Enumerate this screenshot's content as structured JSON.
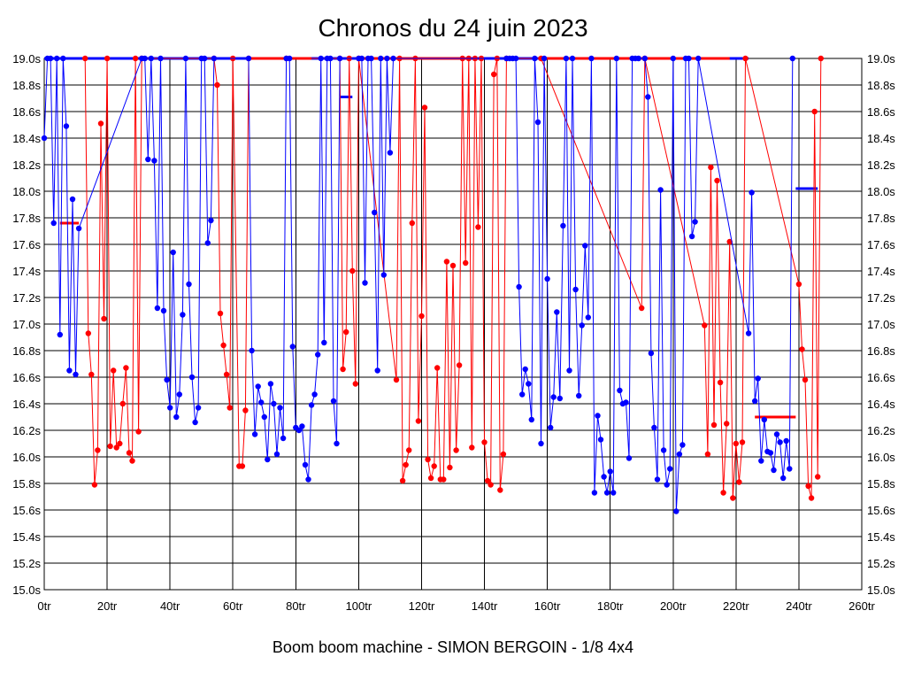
{
  "chart_data": {
    "type": "line",
    "title": "Chronos du 24 juin 2023",
    "caption": "Boom boom machine - SIMON BERGOIN - 1/8 4x4",
    "xlabel": "",
    "ylabel": "",
    "xlim": [
      0,
      260
    ],
    "ylim": [
      15.0,
      19.0
    ],
    "grid": true,
    "x_ticks": [
      0,
      20,
      40,
      60,
      80,
      100,
      120,
      140,
      160,
      180,
      200,
      220,
      240,
      260
    ],
    "x_tick_labels": [
      "0tr",
      "20tr",
      "40tr",
      "60tr",
      "80tr",
      "100tr",
      "120tr",
      "140tr",
      "160tr",
      "180tr",
      "200tr",
      "220tr",
      "240tr",
      "260tr"
    ],
    "y_ticks": [
      15.0,
      15.2,
      15.4,
      15.6,
      15.8,
      16.0,
      16.2,
      16.4,
      16.6,
      16.8,
      17.0,
      17.2,
      17.4,
      17.6,
      17.8,
      18.0,
      18.2,
      18.4,
      18.6,
      18.8,
      19.0
    ],
    "y_tick_labels": [
      "15.0s",
      "15.2s",
      "15.4s",
      "15.6s",
      "15.8s",
      "16.0s",
      "16.2s",
      "16.4s",
      "16.6s",
      "16.8s",
      "17.0s",
      "17.2s",
      "17.4s",
      "17.6s",
      "17.8s",
      "18.0s",
      "18.2s",
      "18.4s",
      "18.6s",
      "18.8s",
      "19.0s"
    ],
    "series": [
      {
        "name": "red",
        "color": "#ff0000",
        "points": [
          [
            13,
            19.0
          ],
          [
            14,
            16.93
          ],
          [
            15,
            16.62
          ],
          [
            16,
            15.79
          ],
          [
            17,
            16.05
          ],
          [
            18,
            18.51
          ],
          [
            19,
            17.04
          ],
          [
            20,
            19.0
          ],
          [
            21,
            16.08
          ],
          [
            22,
            16.65
          ],
          [
            23,
            16.07
          ],
          [
            24,
            16.1
          ],
          [
            25,
            16.4
          ],
          [
            26,
            16.67
          ],
          [
            27,
            16.03
          ],
          [
            28,
            15.97
          ],
          [
            29,
            19.0
          ],
          [
            30,
            16.19
          ],
          [
            31,
            19.0
          ],
          [
            54,
            19.0
          ],
          [
            55,
            18.8
          ],
          [
            56,
            17.08
          ],
          [
            57,
            16.84
          ],
          [
            58,
            16.62
          ],
          [
            59,
            16.37
          ],
          [
            60,
            19.0
          ],
          [
            62,
            15.93
          ],
          [
            63,
            15.93
          ],
          [
            64,
            16.35
          ],
          [
            65,
            19.0
          ],
          [
            77,
            19.0
          ],
          [
            94,
            19.0
          ],
          [
            95,
            16.66
          ],
          [
            96,
            16.94
          ],
          [
            97,
            19.0
          ],
          [
            98,
            17.4
          ],
          [
            99,
            16.55
          ],
          [
            100,
            19.0
          ],
          [
            112,
            16.58
          ],
          [
            113,
            19.0
          ],
          [
            114,
            15.82
          ],
          [
            115,
            15.94
          ],
          [
            116,
            16.05
          ],
          [
            117,
            17.76
          ],
          [
            118,
            19.0
          ],
          [
            119,
            16.27
          ],
          [
            120,
            17.06
          ],
          [
            121,
            18.63
          ],
          [
            122,
            15.98
          ],
          [
            123,
            15.84
          ],
          [
            124,
            15.93
          ],
          [
            125,
            16.67
          ],
          [
            126,
            15.83
          ],
          [
            127,
            15.83
          ],
          [
            128,
            17.47
          ],
          [
            129,
            15.92
          ],
          [
            130,
            17.44
          ],
          [
            131,
            16.05
          ],
          [
            132,
            16.69
          ],
          [
            133,
            19.0
          ],
          [
            134,
            17.46
          ],
          [
            135,
            19.0
          ],
          [
            136,
            16.07
          ],
          [
            137,
            19.0
          ],
          [
            138,
            17.73
          ],
          [
            139,
            19.0
          ],
          [
            140,
            16.11
          ],
          [
            141,
            15.82
          ],
          [
            142,
            15.79
          ],
          [
            143,
            18.88
          ],
          [
            144,
            19.0
          ],
          [
            145,
            15.75
          ],
          [
            146,
            16.02
          ],
          [
            147,
            19.0
          ],
          [
            158,
            19.0
          ],
          [
            190,
            17.12
          ],
          [
            191,
            19.0
          ],
          [
            210,
            16.99
          ],
          [
            211,
            16.02
          ],
          [
            212,
            18.18
          ],
          [
            213,
            16.24
          ],
          [
            214,
            18.08
          ],
          [
            215,
            16.56
          ],
          [
            216,
            15.73
          ],
          [
            217,
            16.25
          ],
          [
            218,
            17.62
          ],
          [
            219,
            15.69
          ],
          [
            220,
            16.1
          ],
          [
            221,
            15.81
          ],
          [
            222,
            16.11
          ],
          [
            223,
            19.0
          ],
          [
            240,
            17.3
          ],
          [
            241,
            16.81
          ],
          [
            242,
            16.58
          ],
          [
            243,
            15.78
          ],
          [
            244,
            15.69
          ],
          [
            245,
            18.6
          ],
          [
            246,
            15.85
          ],
          [
            247,
            19.0
          ]
        ]
      },
      {
        "name": "blue",
        "color": "#0000ff",
        "points": [
          [
            0,
            18.4
          ],
          [
            1,
            19.0
          ],
          [
            2,
            19.0
          ],
          [
            3,
            17.76
          ],
          [
            4,
            19.0
          ],
          [
            5,
            16.92
          ],
          [
            6,
            19.0
          ],
          [
            7,
            18.49
          ],
          [
            8,
            16.65
          ],
          [
            9,
            17.94
          ],
          [
            10,
            16.62
          ],
          [
            11,
            17.72
          ],
          [
            31,
            19.0
          ],
          [
            32,
            19.0
          ],
          [
            33,
            18.24
          ],
          [
            34,
            19.0
          ],
          [
            35,
            18.23
          ],
          [
            36,
            17.12
          ],
          [
            37,
            19.0
          ],
          [
            38,
            17.1
          ],
          [
            39,
            16.58
          ],
          [
            40,
            16.37
          ],
          [
            41,
            17.54
          ],
          [
            42,
            16.3
          ],
          [
            43,
            16.47
          ],
          [
            44,
            17.07
          ],
          [
            45,
            19.0
          ],
          [
            46,
            17.3
          ],
          [
            47,
            16.6
          ],
          [
            48,
            16.26
          ],
          [
            49,
            16.37
          ],
          [
            50,
            19.0
          ],
          [
            51,
            19.0
          ],
          [
            52,
            17.61
          ],
          [
            53,
            17.78
          ],
          [
            54,
            19.0
          ],
          [
            65,
            19.0
          ],
          [
            66,
            16.8
          ],
          [
            67,
            16.17
          ],
          [
            68,
            16.53
          ],
          [
            69,
            16.41
          ],
          [
            70,
            16.3
          ],
          [
            71,
            15.98
          ],
          [
            72,
            16.55
          ],
          [
            73,
            16.4
          ],
          [
            74,
            16.02
          ],
          [
            75,
            16.37
          ],
          [
            76,
            16.14
          ],
          [
            77,
            19.0
          ],
          [
            78,
            19.0
          ],
          [
            79,
            16.83
          ],
          [
            80,
            16.22
          ],
          [
            81,
            16.2
          ],
          [
            82,
            16.23
          ],
          [
            83,
            15.94
          ],
          [
            84,
            15.83
          ],
          [
            85,
            16.39
          ],
          [
            86,
            16.47
          ],
          [
            87,
            16.77
          ],
          [
            88,
            19.0
          ],
          [
            89,
            16.86
          ],
          [
            90,
            19.0
          ],
          [
            91,
            19.0
          ],
          [
            92,
            16.42
          ],
          [
            93,
            16.1
          ],
          [
            94,
            19.0
          ],
          [
            100,
            19.0
          ],
          [
            101,
            19.0
          ],
          [
            102,
            17.31
          ],
          [
            103,
            19.0
          ],
          [
            104,
            19.0
          ],
          [
            105,
            17.84
          ],
          [
            106,
            16.65
          ],
          [
            107,
            19.0
          ],
          [
            108,
            17.37
          ],
          [
            109,
            19.0
          ],
          [
            110,
            18.29
          ],
          [
            111,
            19.0
          ],
          [
            147,
            19.0
          ],
          [
            148,
            19.0
          ],
          [
            149,
            19.0
          ],
          [
            150,
            19.0
          ],
          [
            151,
            17.28
          ],
          [
            152,
            16.47
          ],
          [
            153,
            16.66
          ],
          [
            154,
            16.55
          ],
          [
            155,
            16.28
          ],
          [
            156,
            19.0
          ],
          [
            157,
            18.52
          ],
          [
            158,
            16.1
          ],
          [
            159,
            19.0
          ],
          [
            160,
            17.34
          ],
          [
            161,
            16.22
          ],
          [
            162,
            16.45
          ],
          [
            163,
            17.09
          ],
          [
            164,
            16.44
          ],
          [
            165,
            17.74
          ],
          [
            166,
            19.0
          ],
          [
            167,
            16.65
          ],
          [
            168,
            19.0
          ],
          [
            169,
            17.26
          ],
          [
            170,
            16.46
          ],
          [
            171,
            16.99
          ],
          [
            172,
            17.59
          ],
          [
            173,
            17.05
          ],
          [
            174,
            19.0
          ],
          [
            175,
            15.73
          ],
          [
            176,
            16.31
          ],
          [
            177,
            16.13
          ],
          [
            178,
            15.85
          ],
          [
            179,
            15.73
          ],
          [
            180,
            15.89
          ],
          [
            181,
            15.73
          ],
          [
            182,
            19.0
          ],
          [
            183,
            16.5
          ],
          [
            184,
            16.4
          ],
          [
            185,
            16.41
          ],
          [
            186,
            15.99
          ],
          [
            187,
            19.0
          ],
          [
            188,
            19.0
          ],
          [
            189,
            19.0
          ],
          [
            191,
            19.0
          ],
          [
            192,
            18.71
          ],
          [
            193,
            16.78
          ],
          [
            194,
            16.22
          ],
          [
            195,
            15.83
          ],
          [
            196,
            18.01
          ],
          [
            197,
            16.05
          ],
          [
            198,
            15.79
          ],
          [
            199,
            15.91
          ],
          [
            200,
            19.0
          ],
          [
            201,
            15.59
          ],
          [
            202,
            16.02
          ],
          [
            203,
            16.09
          ],
          [
            204,
            19.0
          ],
          [
            205,
            19.0
          ],
          [
            206,
            17.66
          ],
          [
            207,
            17.77
          ],
          [
            208,
            19.0
          ],
          [
            224,
            16.93
          ],
          [
            225,
            17.99
          ],
          [
            226,
            16.42
          ],
          [
            227,
            16.59
          ],
          [
            228,
            15.97
          ],
          [
            229,
            16.28
          ],
          [
            230,
            16.04
          ],
          [
            231,
            16.03
          ],
          [
            232,
            15.9
          ],
          [
            233,
            16.17
          ],
          [
            234,
            16.11
          ],
          [
            235,
            15.84
          ],
          [
            236,
            16.12
          ],
          [
            237,
            15.91
          ],
          [
            238,
            19.0
          ]
        ]
      }
    ],
    "reference_lines": [
      {
        "color": "#ff0000",
        "x_start": 5,
        "x_end": 11,
        "y": 17.76
      },
      {
        "color": "#0000ff",
        "x_start": 94,
        "x_end": 98,
        "y": 18.71
      },
      {
        "color": "#ff0000",
        "x_start": 226,
        "x_end": 239,
        "y": 16.3
      },
      {
        "color": "#0000ff",
        "x_start": 239,
        "x_end": 246,
        "y": 18.02
      },
      {
        "color": "#0000ff",
        "x_start": 0,
        "x_end": 224,
        "y": 19.0
      },
      {
        "color": "#ff0000",
        "x_start": 65,
        "x_end": 85,
        "y": 19.0
      },
      {
        "color": "#ff0000",
        "x_start": 100,
        "x_end": 135,
        "y": 19.0
      },
      {
        "color": "#ff0000",
        "x_start": 158,
        "x_end": 218,
        "y": 19.0
      }
    ]
  }
}
